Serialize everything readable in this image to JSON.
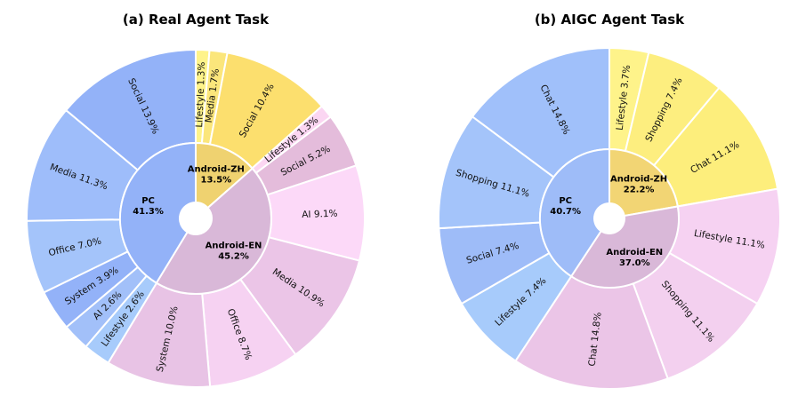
{
  "chart_data": [
    {
      "type": "sunburst",
      "title": "(a) Real Agent Task",
      "start_angle_deg": 0,
      "direction": "clockwise",
      "inner": [
        {
          "label": "Android-ZH",
          "pct_text": "13.5%",
          "value": 13.5,
          "color": "#efd270"
        },
        {
          "label": "Android-EN",
          "pct_text": "45.2%",
          "value": 45.2,
          "color": "#d9b8d8"
        },
        {
          "label": "PC",
          "pct_text": "41.3%",
          "value": 41.3,
          "color": "#93b2f8"
        }
      ],
      "outer": [
        {
          "label": "Lifestyle 1.3%",
          "value": 1.3,
          "group": "Android-ZH",
          "color": "#fef38a"
        },
        {
          "label": "Media 1.7%",
          "value": 1.7,
          "group": "Android-ZH",
          "color": "#fbe67b"
        },
        {
          "label": "Social 10.4%",
          "value": 10.4,
          "group": "Android-ZH",
          "color": "#fcdf6e"
        },
        {
          "label": "Lifestyle 1.3%",
          "value": 1.3,
          "group": "Android-EN",
          "color": "#fbd6f2"
        },
        {
          "label": "Social 5.2%",
          "value": 5.2,
          "group": "Android-EN",
          "color": "#e4bcdb"
        },
        {
          "label": "AI 9.1%",
          "value": 9.1,
          "group": "Android-EN",
          "color": "#fcd9f8"
        },
        {
          "label": "Media 10.9%",
          "value": 10.9,
          "group": "Android-EN",
          "color": "#ebc5e7"
        },
        {
          "label": "Office 8.7%",
          "value": 8.7,
          "group": "Android-EN",
          "color": "#f6d2f2"
        },
        {
          "label": "System 10.0%",
          "value": 10.0,
          "group": "Android-EN",
          "color": "#e8c3e5"
        },
        {
          "label": "Lifestyle 2.6%",
          "value": 2.6,
          "group": "PC",
          "color": "#a7cbfb"
        },
        {
          "label": "AI 2.6%",
          "value": 2.6,
          "group": "PC",
          "color": "#a2c0f9"
        },
        {
          "label": "System 3.9%",
          "value": 3.9,
          "group": "PC",
          "color": "#93b2f8"
        },
        {
          "label": "Office 7.0%",
          "value": 7.0,
          "group": "PC",
          "color": "#a4c4fa"
        },
        {
          "label": "Media 11.3%",
          "value": 11.3,
          "group": "PC",
          "color": "#9ebdfa"
        },
        {
          "label": "Social 13.9%",
          "value": 13.9,
          "group": "PC",
          "color": "#93b2f8"
        }
      ]
    },
    {
      "type": "sunburst",
      "title": "(b) AIGC Agent Task",
      "start_angle_deg": 0,
      "direction": "clockwise",
      "inner": [
        {
          "label": "Android-ZH",
          "pct_text": "22.2%",
          "value": 22.2,
          "color": "#f2d574"
        },
        {
          "label": "Android-EN",
          "pct_text": "37.0%",
          "value": 37.0,
          "color": "#d9b8d8"
        },
        {
          "label": "PC",
          "pct_text": "40.7%",
          "value": 40.7,
          "color": "#9ebcf8"
        }
      ],
      "outer": [
        {
          "label": "Lifestyle 3.7%",
          "value": 3.7,
          "group": "Android-ZH",
          "color": "#fef38a"
        },
        {
          "label": "Shopping 7.4%",
          "value": 7.4,
          "group": "Android-ZH",
          "color": "#fdee7f"
        },
        {
          "label": "Chat 11.1%",
          "value": 11.1,
          "group": "Android-ZH",
          "color": "#fdee7c"
        },
        {
          "label": "Lifestyle 11.1%",
          "value": 11.1,
          "group": "Android-EN",
          "color": "#f6d2f2"
        },
        {
          "label": "Shopping 11.1%",
          "value": 11.1,
          "group": "Android-EN",
          "color": "#f3d0ef"
        },
        {
          "label": "Chat 14.8%",
          "value": 14.8,
          "group": "Android-EN",
          "color": "#ebc5e7"
        },
        {
          "label": "Lifestyle 7.4%",
          "value": 7.4,
          "group": "PC",
          "color": "#a7cbfb"
        },
        {
          "label": "Social 7.4%",
          "value": 7.4,
          "group": "PC",
          "color": "#9ebcf8"
        },
        {
          "label": "Shopping 11.1%",
          "value": 11.1,
          "group": "PC",
          "color": "#a4c4fa"
        },
        {
          "label": "Chat 14.8%",
          "value": 14.8,
          "group": "PC",
          "color": "#a0c0fa"
        }
      ]
    }
  ]
}
